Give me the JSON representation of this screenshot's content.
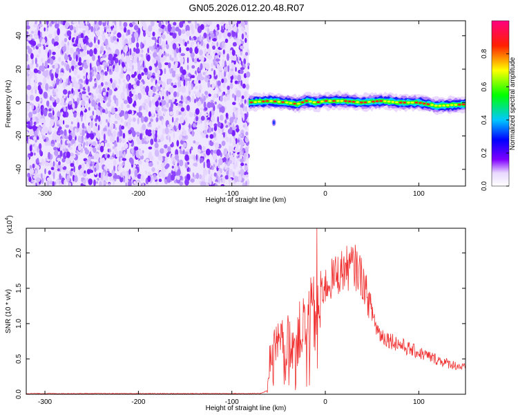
{
  "title": "GN05.2026.012.20.48.R07",
  "chart_data": [
    {
      "type": "heatmap",
      "xlabel": "Height of straight line (km)",
      "ylabel": "Frequency (Hz)",
      "xlim": [
        -320,
        150
      ],
      "ylim": [
        -50,
        49
      ],
      "x_ticks": [
        -300,
        -200,
        -100,
        0,
        100
      ],
      "y_ticks": [
        -40,
        -20,
        0,
        20,
        40
      ],
      "colorbar": {
        "label": "Normalized spectral amplitude",
        "range": [
          0,
          1
        ],
        "ticks": [
          0.0,
          0.2,
          0.4,
          0.6,
          0.8
        ],
        "colors": [
          "#ffffff",
          "#8000ff",
          "#0000ff",
          "#00c0ff",
          "#00ff00",
          "#ffff00",
          "#ff0000",
          "#ff0080"
        ]
      },
      "noise_region": {
        "x": [
          -320,
          -82
        ],
        "freq": [
          -50,
          49
        ],
        "amplitude_range": [
          0.05,
          0.25
        ]
      },
      "signal_track": {
        "x_start": -82,
        "x_end": 150,
        "center_freq_hz": [
          [
            -82,
            0
          ],
          [
            -60,
            1
          ],
          [
            -40,
            0
          ],
          [
            -30,
            -1
          ],
          [
            -20,
            1
          ],
          [
            -10,
            0
          ],
          [
            0,
            1
          ],
          [
            20,
            1
          ],
          [
            40,
            0
          ],
          [
            60,
            1
          ],
          [
            80,
            0
          ],
          [
            100,
            0
          ],
          [
            120,
            -2
          ],
          [
            150,
            -1
          ]
        ],
        "peak_amplitude": 0.9
      },
      "blob": {
        "x": -55,
        "freq": -12,
        "amplitude": 0.3
      }
    },
    {
      "type": "line",
      "xlabel": "Height of straight line (km)",
      "ylabel": "SNR (10 * v/v)",
      "y_multiplier": "(x10",
      "y_multiplier_exponent": "4",
      "y_multiplier_close": ")",
      "xlim": [
        -320,
        150
      ],
      "ylim": [
        0,
        2.35
      ],
      "x_ticks": [
        -300,
        -200,
        -100,
        0,
        100
      ],
      "y_ticks": [
        0.0,
        0.5,
        1.0,
        1.5,
        2.0
      ],
      "y_tick_labels": [
        "0.0",
        "0.5",
        "1.0",
        "1.5",
        "2.0"
      ],
      "series": [
        {
          "color": "#f03030",
          "envelope": [
            [
              -320,
              0.01
            ],
            [
              -70,
              0.01
            ],
            [
              -62,
              0.05
            ],
            [
              -60,
              0.6
            ],
            [
              -55,
              0.85
            ],
            [
              -45,
              0.95
            ],
            [
              -35,
              1.0
            ],
            [
              -25,
              1.2
            ],
            [
              -15,
              1.45
            ],
            [
              0,
              1.6
            ],
            [
              10,
              1.75
            ],
            [
              20,
              1.85
            ],
            [
              30,
              1.9
            ],
            [
              35,
              1.85
            ],
            [
              40,
              1.7
            ],
            [
              45,
              1.45
            ],
            [
              50,
              1.2
            ],
            [
              55,
              0.95
            ],
            [
              60,
              0.85
            ],
            [
              75,
              0.75
            ],
            [
              90,
              0.65
            ],
            [
              110,
              0.55
            ],
            [
              130,
              0.45
            ],
            [
              150,
              0.38
            ]
          ],
          "spike": {
            "x": -9,
            "y": 2.35
          }
        }
      ]
    }
  ]
}
